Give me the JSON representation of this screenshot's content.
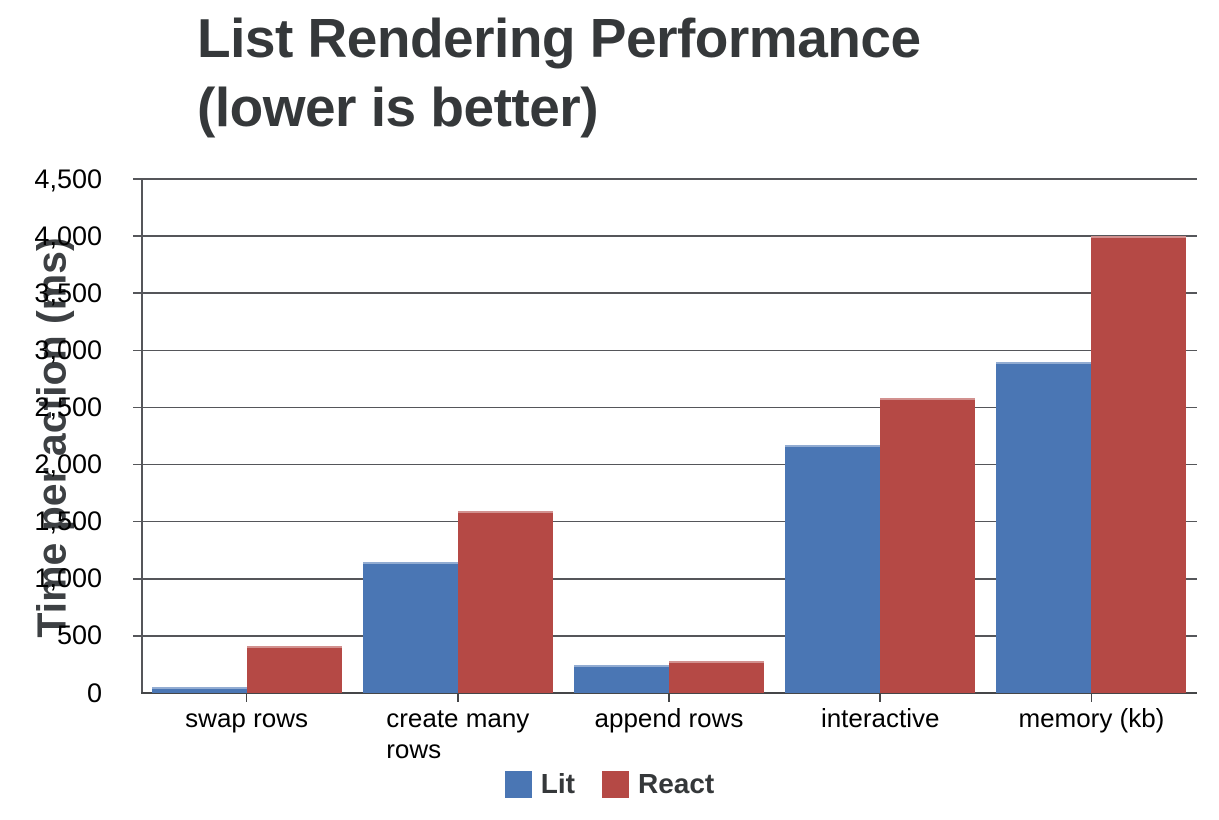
{
  "title": {
    "line1": "List Rendering Performance",
    "line2": "(lower is better)"
  },
  "chart_data": {
    "type": "bar",
    "title": "List Rendering Performance (lower is better)",
    "xlabel": "",
    "ylabel": "Time per action (ms)",
    "categories": [
      "swap rows",
      "create many rows",
      "append rows",
      "interactive",
      "memory (kb)"
    ],
    "category_label_lines": [
      [
        "swap rows"
      ],
      [
        "create many",
        "rows"
      ],
      [
        "append rows"
      ],
      [
        "interactive"
      ],
      [
        "memory (kb)"
      ]
    ],
    "series": [
      {
        "name": "Lit",
        "color": "#4A76B4",
        "values": [
          50,
          1150,
          245,
          2175,
          2900
        ]
      },
      {
        "name": "React",
        "color": "#B54945",
        "values": [
          415,
          1590,
          280,
          2580,
          4000
        ]
      }
    ],
    "ylim": [
      0,
      4500
    ],
    "ytick_step": 500,
    "ytick_labels": [
      "0",
      "500",
      "1,000",
      "1,500",
      "2,000",
      "2,500",
      "3,000",
      "3,500",
      "4,000",
      "4,500"
    ],
    "grid": true,
    "legend_position": "bottom"
  },
  "colors": {
    "grid": "#55565A",
    "axis": "#454648",
    "tick_label": "#000000",
    "title": "#35383A",
    "axis_title": "#3D4043",
    "lit": "#4A76B4",
    "react": "#B54945"
  }
}
